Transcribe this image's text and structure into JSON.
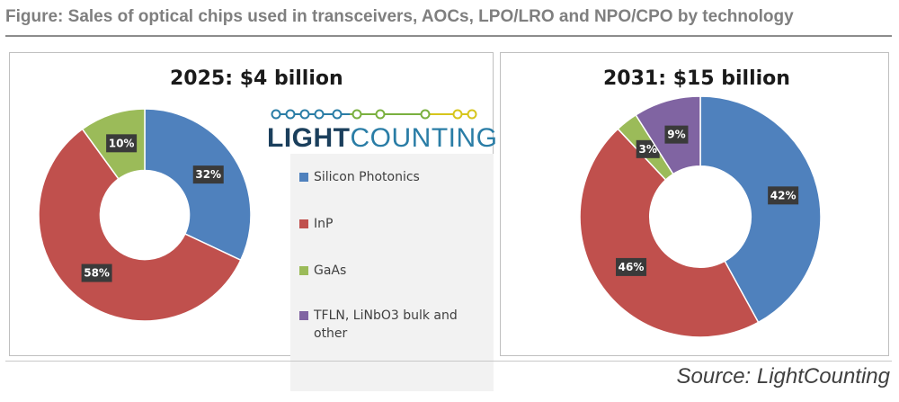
{
  "figure_title": "Figure: Sales of optical chips used in transceivers, AOCs, LPO/LRO and NPO/CPO by technology",
  "source": "Source: LightCounting",
  "logo": {
    "part1": "LIGHT",
    "part2": "COUNTING",
    "colors": {
      "dark": "#1b3f5c",
      "blue": "#2a7da6",
      "green": "#7ab03f",
      "yellow": "#d6c51c"
    }
  },
  "chart_data": [
    {
      "type": "pie",
      "title": "2025: $4 billion",
      "categories": [
        "Silicon Photonics",
        "InP",
        "GaAs",
        "TFLN, LiNbO3 bulk and other"
      ],
      "values": [
        32,
        58,
        10,
        0
      ],
      "labels": [
        "32%",
        "58%",
        "10%",
        ""
      ],
      "colors": [
        "#4f81bd",
        "#c0504d",
        "#9bbb59",
        "#8064a2"
      ],
      "legend_position": "right"
    },
    {
      "type": "pie",
      "title": "2031: $15 billion",
      "categories": [
        "Silicon Photonics",
        "InP",
        "GaAs",
        "TFLN, LiNbO3 bulk and other"
      ],
      "values": [
        42,
        46,
        3,
        9
      ],
      "labels": [
        "42%",
        "46%",
        "3%",
        "9%"
      ],
      "colors": [
        "#4f81bd",
        "#c0504d",
        "#9bbb59",
        "#8064a2"
      ],
      "legend_position": "none"
    }
  ],
  "legend": [
    {
      "label": "Silicon Photonics",
      "color": "#4f81bd"
    },
    {
      "label": "InP",
      "color": "#c0504d"
    },
    {
      "label": "GaAs",
      "color": "#9bbb59"
    },
    {
      "label": "TFLN, LiNbO3 bulk and other",
      "color": "#8064a2"
    }
  ]
}
